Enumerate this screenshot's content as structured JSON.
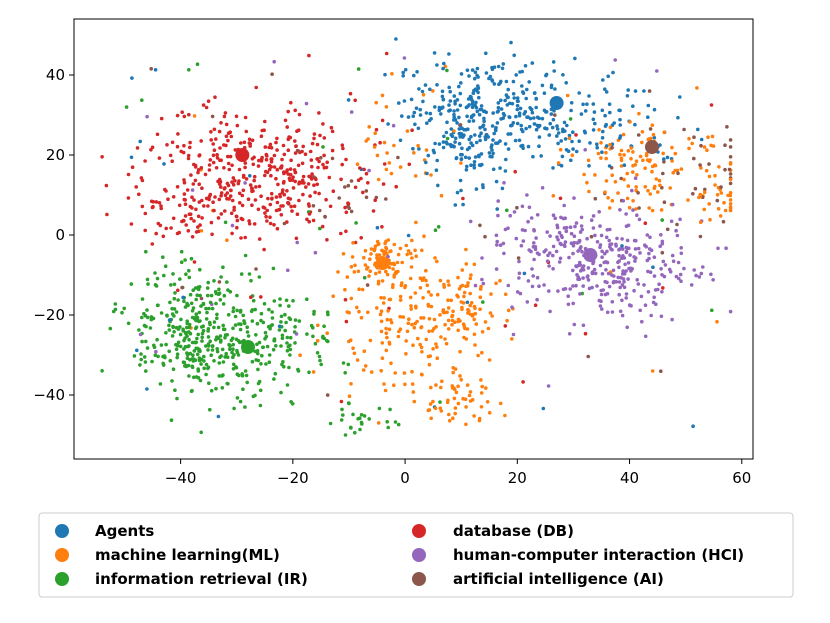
{
  "chart_data": {
    "type": "scatter",
    "title": "",
    "xlabel": "",
    "ylabel": "",
    "xlim": [
      -59,
      62
    ],
    "ylim": [
      -56,
      54
    ],
    "xticks": [
      -40,
      -20,
      0,
      20,
      40,
      60
    ],
    "yticks": [
      -40,
      -20,
      0,
      20,
      40
    ],
    "xtick_labels": [
      "−40",
      "−20",
      "0",
      "20",
      "40",
      "60"
    ],
    "ytick_labels": [
      "−40",
      "−20",
      "0",
      "20",
      "40"
    ],
    "grid": false,
    "legend_position": "bottom",
    "series": [
      {
        "name": "Agents",
        "color": "#1f77b4",
        "centroid": [
          27,
          33
        ],
        "clusters": [
          {
            "c": [
              16,
              31
            ],
            "s": [
              9,
              7
            ],
            "n": 330
          },
          {
            "c": [
              33,
              26
            ],
            "s": [
              8,
              6
            ],
            "n": 70
          },
          {
            "c": [
              10,
              20
            ],
            "s": [
              3,
              6
            ],
            "n": 60
          }
        ]
      },
      {
        "name": "machine learning(ML)",
        "color": "#ff7f0e",
        "centroid": [
          -4,
          -7
        ],
        "clusters": [
          {
            "c": [
              -4,
              -7
            ],
            "s": [
              3,
              3
            ],
            "n": 80
          },
          {
            "c": [
              2,
              -22
            ],
            "s": [
              7,
              10
            ],
            "n": 190
          },
          {
            "c": [
              11,
              -18
            ],
            "s": [
              3,
              5
            ],
            "n": 50
          },
          {
            "c": [
              9,
              -41
            ],
            "s": [
              3,
              3
            ],
            "n": 40
          },
          {
            "c": [
              43,
              18
            ],
            "s": [
              7,
              6
            ],
            "n": 120
          },
          {
            "c": [
              56,
              9
            ],
            "s": [
              3,
              3
            ],
            "n": 25
          },
          {
            "c": [
              -2,
              22
            ],
            "s": [
              4,
              6
            ],
            "n": 30
          }
        ]
      },
      {
        "name": "information retrieval (IR)",
        "color": "#2ca02c",
        "centroid": [
          -28,
          -28
        ],
        "clusters": [
          {
            "c": [
              -37,
              -24
            ],
            "s": [
              6,
              9
            ],
            "n": 320
          },
          {
            "c": [
              -25,
              -27
            ],
            "s": [
              6,
              6
            ],
            "n": 160
          },
          {
            "c": [
              -7,
              -46
            ],
            "s": [
              4,
              2
            ],
            "n": 25
          }
        ]
      },
      {
        "name": "database (DB)",
        "color": "#d62728",
        "centroid": [
          -29,
          20
        ],
        "clusters": [
          {
            "c": [
              -26,
              15
            ],
            "s": [
              10,
              8
            ],
            "n": 420
          },
          {
            "c": [
              -40,
              5
            ],
            "s": [
              5,
              4
            ],
            "n": 40
          }
        ]
      },
      {
        "name": "human-computer interaction (HCI)",
        "color": "#9467bd",
        "centroid": [
          33,
          -5
        ],
        "clusters": [
          {
            "c": [
              35,
              -7
            ],
            "s": [
              9,
              7
            ],
            "n": 320
          },
          {
            "c": [
              24,
              0
            ],
            "s": [
              5,
              4
            ],
            "n": 40
          }
        ]
      },
      {
        "name": "artificial intelligence (AI)",
        "color": "#8c564b",
        "centroid": [
          44,
          22
        ],
        "clusters": [
          {
            "c": [
              50,
              15
            ],
            "s": [
              8,
              8
            ],
            "n": 40
          },
          {
            "c": [
              -10,
              10
            ],
            "s": [
              6,
              5
            ],
            "n": 20
          }
        ]
      }
    ],
    "noise_points_per_series": 25
  },
  "legend": {
    "items": [
      {
        "label": "Agents",
        "color": "#1f77b4"
      },
      {
        "label": "database (DB)",
        "color": "#d62728"
      },
      {
        "label": "machine learning(ML)",
        "color": "#ff7f0e"
      },
      {
        "label": "human-computer interaction (HCI)",
        "color": "#9467bd"
      },
      {
        "label": "information retrieval (IR)",
        "color": "#2ca02c"
      },
      {
        "label": "artificial intelligence (AI)",
        "color": "#8c564b"
      }
    ]
  }
}
